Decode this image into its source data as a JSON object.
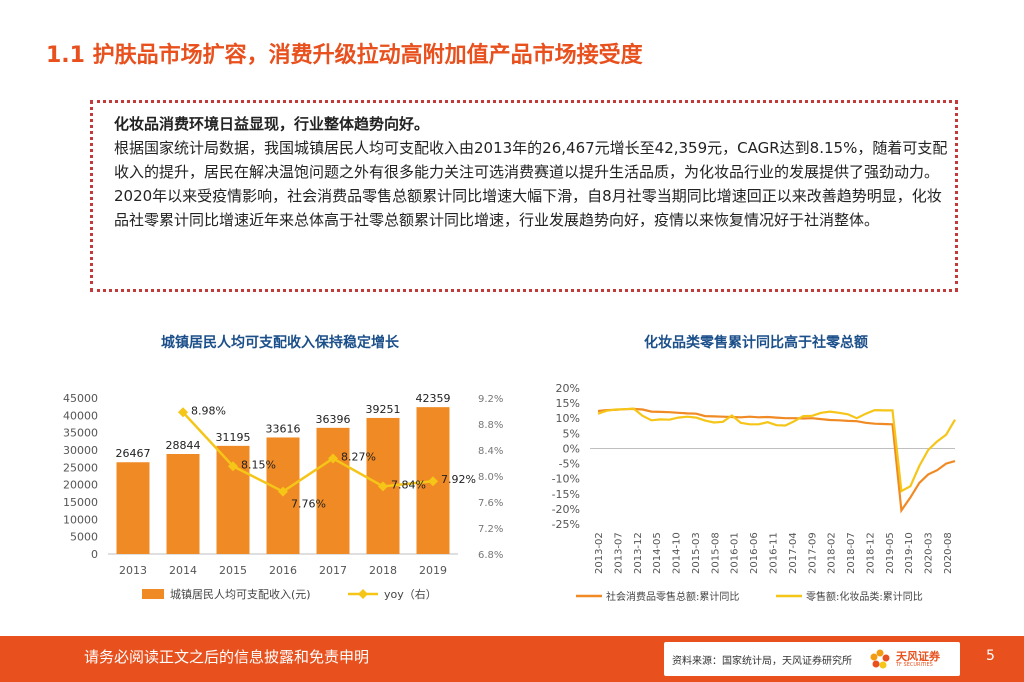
{
  "slide": {
    "title": "1.1 护肤品市场扩容，消费升级拉动高附加值产品市场接受度",
    "lead": "化妆品消费环境日益显现，行业整体趋势向好。",
    "para1": "根据国家统计局数据，我国城镇居民人均可支配收入由2013年的26,467元增长至42,359元，CAGR达到8.15%，随着可支配收入的提升，居民在解决温饱问题之外有很多能力关注可选消费赛道以提升生活品质，为化妆品行业的发展提供了强劲动力。",
    "para2": "2020年以来受疫情影响，社会消费品零售总额累计同比增速大幅下滑，自8月社零当期同比增速回正以来改善趋势明显，化妆品社零累计同比增速近年来总体高于社零总额累计同比增速，行业发展趋势向好，疫情以来恢复情况好于社消整体。"
  },
  "footer": {
    "disclaimer": "请务必阅读正文之后的信息披露和免责申明",
    "source": "资料来源：国家统计局，天风证券研究所",
    "logo_text": "天风证券",
    "logo_sub": "TF SECURITIES",
    "page": "5"
  },
  "colors": {
    "orange": "#f08a24",
    "yellow": "#f5c518",
    "accent": "#e8501e",
    "title_blue": "#1b4f8a"
  },
  "chart_data": [
    {
      "type": "bar",
      "title": "城镇居民人均可支配收入保持稳定增长",
      "categories": [
        "2013",
        "2014",
        "2015",
        "2016",
        "2017",
        "2018",
        "2019"
      ],
      "series": [
        {
          "name": "城镇居民人均可支配收入(元)",
          "values": [
            26467,
            28844,
            31195,
            33616,
            36396,
            39251,
            42359
          ]
        },
        {
          "name": "yoy（右）",
          "type": "line",
          "values": [
            null,
            8.98,
            8.15,
            7.76,
            8.27,
            7.84,
            7.92
          ],
          "labels": [
            "",
            "8.98%",
            "8.15%",
            "7.76%",
            "8.27%",
            "7.84%",
            "7.92%"
          ]
        }
      ],
      "bar_labels": [
        "26467",
        "28844",
        "31195",
        "33616",
        "36396",
        "39251",
        "42359"
      ],
      "y_ticks": [
        "0",
        "5000",
        "10000",
        "15000",
        "20000",
        "25000",
        "30000",
        "35000",
        "40000",
        "45000"
      ],
      "y2_ticks": [
        "6.8%",
        "7.2%",
        "7.6%",
        "8.0%",
        "8.4%",
        "8.8%",
        "9.2%"
      ],
      "ylim": [
        0,
        45000
      ],
      "y2lim": [
        6.8,
        9.2
      ]
    },
    {
      "type": "line",
      "title": "化妆品类零售累计同比高于社零总额",
      "x_ticks": [
        "2013-02",
        "2013-07",
        "2013-12",
        "2014-05",
        "2014-10",
        "2015-03",
        "2015-08",
        "2016-01",
        "2016-06",
        "2016-11",
        "2017-04",
        "2017-09",
        "2018-02",
        "2018-07",
        "2018-12",
        "2019-05",
        "2019-10",
        "2020-03",
        "2020-08"
      ],
      "y_ticks": [
        "20%",
        "15%",
        "10%",
        "5%",
        "0%",
        "-5%",
        "-10%",
        "-15%",
        "-20%",
        "-25%"
      ],
      "ylim": [
        -25,
        20
      ],
      "series": [
        {
          "name": "社会消费品零售总额:累计同比",
          "values": [
            12.4,
            12.7,
            12.8,
            13.0,
            13.1,
            12.9,
            12.2,
            12.1,
            12.0,
            11.8,
            11.6,
            11.5,
            10.7,
            10.6,
            10.5,
            10.4,
            10.3,
            10.5,
            10.3,
            10.4,
            10.2,
            10.0,
            10.0,
            9.9,
            10.0,
            9.7,
            9.4,
            9.3,
            9.1,
            9.0,
            8.5,
            8.2,
            8.1,
            8.0,
            -20.5,
            -16.2,
            -11.4,
            -8.6,
            -7.2,
            -5.0,
            -4.2
          ]
        },
        {
          "name": "零售额:化妆品类:累计同比",
          "values": [
            11.5,
            12.5,
            12.9,
            13.0,
            13.2,
            10.8,
            9.3,
            9.6,
            9.5,
            10.2,
            10.5,
            10.2,
            9.2,
            8.6,
            8.8,
            10.9,
            8.5,
            8.0,
            8.0,
            8.7,
            7.7,
            7.6,
            9.0,
            10.7,
            10.8,
            11.8,
            12.2,
            11.8,
            11.3,
            10.0,
            11.5,
            12.7,
            12.6,
            12.6,
            -14.1,
            -12.5,
            -5.8,
            -0.5,
            2.3,
            4.5,
            9.5
          ]
        }
      ]
    }
  ]
}
